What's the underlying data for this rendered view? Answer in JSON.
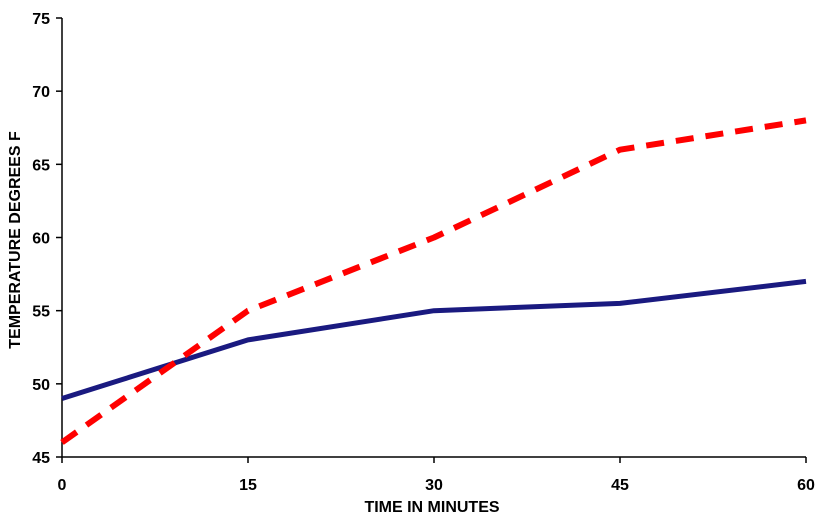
{
  "chart_data": {
    "type": "line",
    "title": "",
    "xlabel": "TIME IN MINUTES",
    "ylabel": "TEMPERATURE  DEGREES F",
    "x": [
      0,
      15,
      30,
      45,
      60
    ],
    "xticks": [
      "0",
      "15",
      "30",
      "45",
      "60"
    ],
    "yticks": [
      "45",
      "50",
      "55",
      "60",
      "65",
      "70",
      "75"
    ],
    "xlim": [
      0,
      60
    ],
    "ylim": [
      45,
      75
    ],
    "grid": false,
    "legend": "none",
    "series": [
      {
        "values": [
          49,
          53,
          55,
          55.5,
          57
        ],
        "color": "#1a1a80",
        "style": "solid"
      },
      {
        "values": [
          46,
          55,
          60,
          66,
          68
        ],
        "color": "#ff0000",
        "style": "dashed"
      }
    ]
  }
}
